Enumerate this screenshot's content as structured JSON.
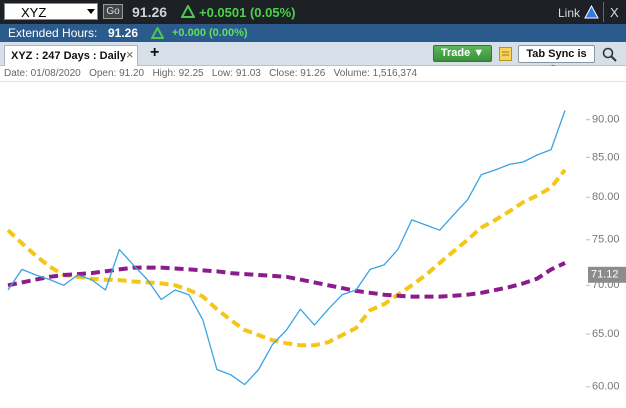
{
  "toolbar": {
    "symbol": "XYZ",
    "go": "Go",
    "price": "91.26",
    "change": "+0.0501 (0.05%)",
    "link": "Link",
    "close": "X"
  },
  "extended": {
    "label": "Extended Hours:",
    "price": "91.26",
    "change": "+0.000 (0.00%)"
  },
  "tabs": {
    "active": "XYZ : 247 Days : Daily",
    "close": "×",
    "add": "+",
    "trade": "Trade ▼",
    "sync": "Tab Sync is On"
  },
  "info": "Date: 01/08/2020   Open: 91.20   High: 92.25   Low: 91.03   Close: 91.26   Volume: 1,516,374",
  "chart_data": {
    "type": "line",
    "log_scale": true,
    "ylim": [
      58.1,
      95.3
    ],
    "yticks": [
      {
        "value": 90,
        "label": "90.00"
      },
      {
        "value": 85,
        "label": "85.00"
      },
      {
        "value": 80,
        "label": "80.00"
      },
      {
        "value": 75,
        "label": "75.00"
      },
      {
        "value": 70,
        "label": "70.00"
      },
      {
        "value": 65,
        "label": "65.00"
      },
      {
        "value": 60,
        "label": "60.00"
      }
    ],
    "last_marker": 71.12,
    "series": [
      {
        "color": "#3aa3e3",
        "dashed": false,
        "values": [
          69.5,
          71.7,
          71.1,
          70.6,
          70.0,
          71.1,
          70.6,
          69.5,
          73.9,
          72.2,
          70.6,
          68.5,
          69.5,
          69.0,
          66.4,
          61.6,
          61.1,
          60.2,
          61.6,
          64.0,
          65.4,
          67.5,
          65.9,
          67.5,
          69.0,
          69.5,
          71.7,
          72.2,
          73.9,
          77.3,
          76.7,
          76.1,
          77.9,
          79.7,
          82.8,
          83.4,
          84.1,
          84.4,
          85.3,
          86.0,
          91.26
        ]
      },
      {
        "color": "#f5c518",
        "dashed": true,
        "values": [
          76.1,
          74.6,
          73.2,
          72.0,
          71.1,
          70.9,
          70.7,
          70.6,
          70.55,
          70.4,
          70.3,
          70.2,
          70.0,
          69.5,
          68.8,
          67.5,
          66.4,
          65.4,
          64.9,
          64.4,
          64.1,
          63.9,
          63.9,
          64.2,
          64.9,
          65.6,
          67.4,
          68.0,
          69.0,
          70.0,
          71.1,
          72.4,
          73.7,
          75.0,
          76.4,
          77.3,
          78.3,
          79.4,
          80.2,
          81.2,
          83.4
        ]
      },
      {
        "color": "#8e1b8e",
        "dashed": true,
        "values": [
          70.0,
          70.3,
          70.6,
          70.9,
          71.1,
          71.2,
          71.3,
          71.5,
          71.7,
          71.9,
          71.9,
          71.9,
          71.8,
          71.7,
          71.6,
          71.5,
          71.3,
          71.2,
          71.1,
          71.0,
          70.9,
          70.6,
          70.3,
          70.0,
          69.7,
          69.4,
          69.2,
          69.0,
          68.9,
          68.8,
          68.8,
          68.8,
          68.9,
          69.0,
          69.2,
          69.5,
          69.8,
          70.2,
          70.7,
          71.7,
          72.4
        ]
      }
    ]
  }
}
